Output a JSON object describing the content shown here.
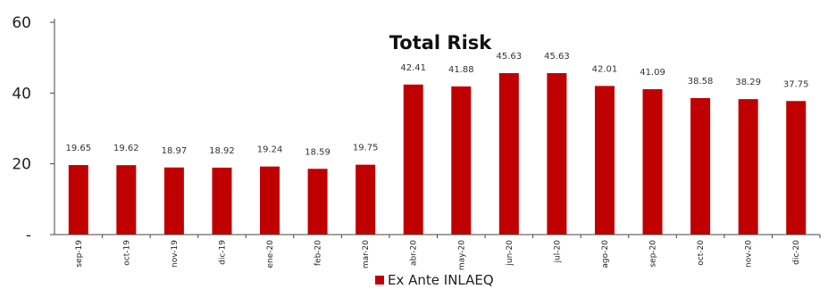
{
  "chart_data": {
    "type": "bar",
    "title": "Total Risk",
    "categories": [
      "sep-19",
      "oct-19",
      "nov-19",
      "dic-19",
      "ene-20",
      "feb-20",
      "mar-20",
      "abr-20",
      "may-20",
      "jun-20",
      "jul-20",
      "ago-20",
      "sep-20",
      "oct-20",
      "nov-20",
      "dic-20"
    ],
    "series": [
      {
        "name": "Ex Ante INLAEQ",
        "color": "#c00000",
        "values": [
          19.65,
          19.62,
          18.97,
          18.92,
          19.24,
          18.59,
          19.75,
          42.41,
          41.88,
          45.63,
          45.63,
          42.01,
          41.09,
          38.58,
          38.29,
          37.75
        ],
        "data_labels": [
          "19.65",
          "19.62",
          "18.97",
          "18.92",
          "19.24",
          "18.59",
          "19.75",
          "42.41",
          "41.88",
          "45.63",
          "45.63",
          "42.01",
          "41.09",
          "38.58",
          "38.29",
          "37.75"
        ]
      }
    ],
    "ylim": [
      0,
      60
    ],
    "yticks": [
      0,
      20,
      40,
      60
    ],
    "ytick_labels": [
      "-",
      "20",
      "40",
      "60"
    ],
    "grid": false,
    "legend": "bottom"
  }
}
